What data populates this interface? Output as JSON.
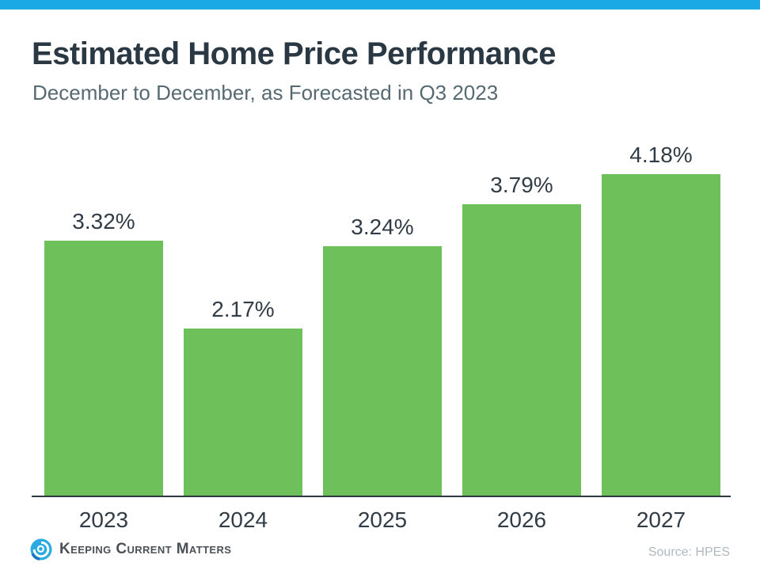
{
  "colors": {
    "accent": "#1ba9e6",
    "bar": "#6ec05b",
    "title": "#2a3844",
    "subtitle": "#576a72",
    "label": "#323c46",
    "axis": "#2e3a42",
    "source": "#b0b9c0",
    "logo_blue": "#29abe2",
    "logo_dark_blue": "#1b75bc"
  },
  "header": {
    "title": "Estimated Home Price Performance",
    "subtitle": "December to December, as Forecasted in Q3 2023"
  },
  "chart_data": {
    "type": "bar",
    "categories": [
      "2023",
      "2024",
      "2025",
      "2026",
      "2027"
    ],
    "values": [
      3.32,
      2.17,
      3.24,
      3.79,
      4.18
    ],
    "labels": [
      "3.32%",
      "2.17%",
      "3.24%",
      "3.79%",
      "4.18%"
    ],
    "title": "Estimated Home Price Performance",
    "subtitle": "December to December, as Forecasted in Q3 2023",
    "xlabel": "",
    "ylabel": "",
    "ylim": [
      0,
      4.92
    ],
    "grid": false,
    "legend": false,
    "bar_color": "#6ec05b",
    "value_label_position": "above-bars",
    "x_axis_line": true,
    "y_axis_line": false
  },
  "footer": {
    "logo_text": "Keeping Current Matters",
    "source": "Source: HPES"
  }
}
